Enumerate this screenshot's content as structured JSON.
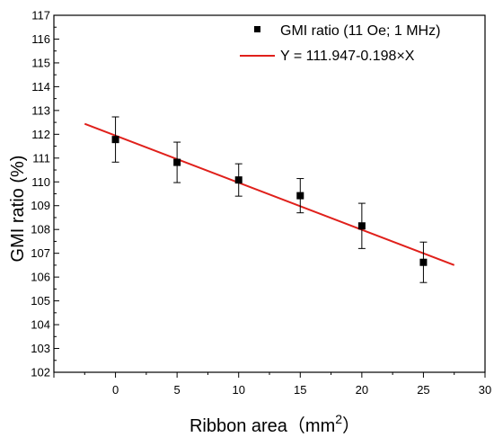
{
  "chart_data": {
    "type": "scatter",
    "title": "",
    "xlabel": "Ribbon area（mm",
    "xlabel_sup": "2",
    "xlabel_close": "）",
    "ylabel": "GMI ratio (%)",
    "xlim": [
      -5,
      30
    ],
    "ylim": [
      102,
      117
    ],
    "x_ticks": [
      "0",
      "5",
      "10",
      "15",
      "20",
      "25",
      "30"
    ],
    "y_ticks": [
      "102",
      "103",
      "104",
      "105",
      "106",
      "107",
      "108",
      "109",
      "110",
      "111",
      "112",
      "113",
      "114",
      "115",
      "116",
      "117"
    ],
    "grid": false,
    "legend_position": "top-right",
    "series": [
      {
        "name": "GMI ratio (11 Oe; 1 MHz)",
        "kind": "points",
        "marker": "square",
        "color": "#000000",
        "x": [
          0,
          5,
          10,
          15,
          20,
          25
        ],
        "y": [
          111.78,
          110.82,
          110.08,
          109.42,
          108.15,
          106.62
        ],
        "error": [
          0.95,
          0.85,
          0.68,
          0.72,
          0.95,
          0.85
        ]
      },
      {
        "name": "Y = 111.947-0.198×X",
        "kind": "fit-line",
        "color": "#e0201b",
        "intercept": 111.947,
        "slope": -0.198,
        "x_range": [
          -2.5,
          27.5
        ]
      }
    ]
  }
}
